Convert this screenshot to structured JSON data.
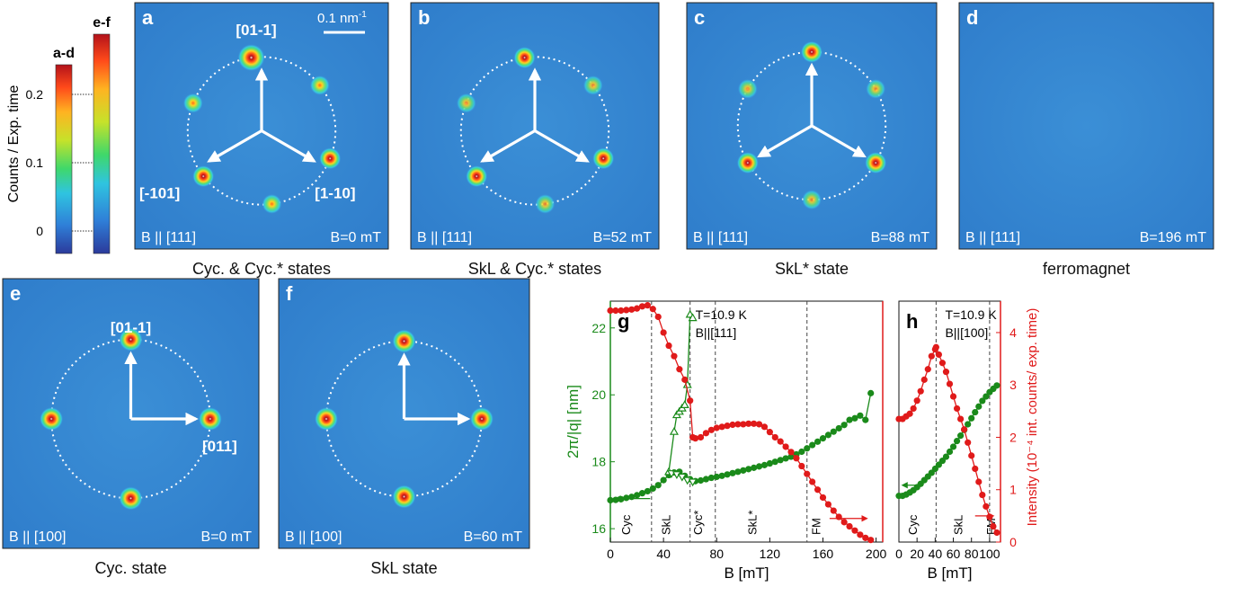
{
  "colorbars": {
    "ad_label": "a-d",
    "ef_label": "e-f",
    "axis_title": "Counts / Exp. time",
    "ticks": [
      "0",
      "0.1",
      "0.2"
    ]
  },
  "panels": [
    {
      "letter": "a",
      "field": "B || [111]",
      "bval": "B=0 mT",
      "caption": "Cyc. & Cyc.* states",
      "scale": "0.1 nm",
      "scale_sup": "-1",
      "dirs": [
        "[01-1]",
        "[-101]",
        "[1-10]"
      ],
      "intensity": 0.9
    },
    {
      "letter": "b",
      "field": "B || [111]",
      "bval": "B=52 mT",
      "caption": "SkL & Cyc.* states",
      "intensity": 0.65
    },
    {
      "letter": "c",
      "field": "B || [111]",
      "bval": "B=88 mT",
      "caption": "SkL* state",
      "intensity": 0.6
    },
    {
      "letter": "d",
      "field": "B || [111]",
      "bval": "B=196 mT",
      "caption": "ferromagnet",
      "intensity": 0.0
    },
    {
      "letter": "e",
      "field": "B || [100]",
      "bval": "B=0 mT",
      "caption": "Cyc. state",
      "dirs": [
        "[01-1]",
        "[011]"
      ],
      "intensity": 0.9
    },
    {
      "letter": "f",
      "field": "B || [100]",
      "bval": "B=60 mT",
      "caption": "SkL state",
      "intensity": 0.95
    }
  ],
  "chart_data": [
    {
      "type": "scatter",
      "panel": "g",
      "annotation": "T=10.9 K",
      "annotation2": "B||[111]",
      "xlabel": "B [mT]",
      "ylabel": "2π/|q| [nm]",
      "xlim": [
        0,
        205
      ],
      "ylim": [
        15.6,
        22.8
      ],
      "xticks": [
        0,
        40,
        80,
        120,
        160,
        200
      ],
      "yticks": [
        16,
        18,
        20,
        22
      ],
      "y2lim": [
        0,
        4.6
      ],
      "phase_lines": [
        31,
        60,
        79,
        148
      ],
      "phase_labels": [
        {
          "text": "Cyc",
          "x": 15
        },
        {
          "text": "SkL",
          "x": 45
        },
        {
          "text": "Cyc*",
          "x": 69
        },
        {
          "text": "SkL*",
          "x": 110
        },
        {
          "text": "FM",
          "x": 158
        }
      ],
      "series": [
        {
          "role": "wavelength",
          "color": "#1a8a1a",
          "marker": "circle",
          "x": [
            0,
            4,
            8,
            12,
            16,
            20,
            24,
            28,
            32,
            36,
            40,
            44,
            48,
            52,
            56,
            60,
            64,
            68,
            72,
            76,
            80,
            84,
            88,
            92,
            96,
            100,
            104,
            108,
            112,
            116,
            120,
            124,
            128,
            132,
            136,
            140,
            144,
            148,
            152,
            156,
            160,
            164,
            168,
            172,
            176,
            180,
            184,
            188,
            192,
            196
          ],
          "y": [
            16.85,
            16.86,
            16.88,
            16.92,
            16.95,
            17.0,
            17.06,
            17.12,
            17.2,
            17.3,
            17.45,
            17.6,
            17.68,
            17.7,
            17.58,
            17.48,
            17.42,
            17.44,
            17.48,
            17.52,
            17.55,
            17.58,
            17.62,
            17.66,
            17.7,
            17.74,
            17.78,
            17.82,
            17.86,
            17.9,
            17.95,
            18.0,
            18.05,
            18.1,
            18.15,
            18.22,
            18.3,
            18.4,
            18.5,
            18.6,
            18.7,
            18.8,
            18.9,
            19.0,
            19.1,
            19.25,
            19.3,
            19.38,
            19.25,
            20.05
          ]
        },
        {
          "role": "wavelength-up",
          "color": "#1a8a1a",
          "marker": "triangle-up",
          "x": [
            44,
            48,
            50,
            52,
            54,
            56,
            58,
            60,
            62
          ],
          "y": [
            17.7,
            18.9,
            19.4,
            19.5,
            19.6,
            19.7,
            20.3,
            22.4,
            22.3
          ]
        },
        {
          "role": "wavelength-down",
          "color": "#1a8a1a",
          "marker": "triangle-down",
          "x": [
            46,
            50,
            54,
            58,
            62
          ],
          "y": [
            17.65,
            17.62,
            17.55,
            17.45,
            17.4
          ]
        },
        {
          "role": "intensity",
          "color": "#e01a1a",
          "marker": "circle",
          "axis": "right",
          "x": [
            0,
            4,
            8,
            12,
            16,
            20,
            24,
            28,
            32,
            36,
            40,
            44,
            48,
            52,
            56,
            60,
            62,
            64,
            68,
            72,
            76,
            80,
            84,
            88,
            92,
            96,
            100,
            104,
            108,
            112,
            116,
            120,
            124,
            128,
            132,
            136,
            140,
            144,
            148,
            152,
            156,
            160,
            164,
            168,
            172,
            176,
            180,
            184,
            188,
            192,
            196
          ],
          "y": [
            4.42,
            4.42,
            4.42,
            4.43,
            4.44,
            4.46,
            4.5,
            4.52,
            4.45,
            4.3,
            4.0,
            3.75,
            3.55,
            3.3,
            3.1,
            2.7,
            2.0,
            1.98,
            2.0,
            2.08,
            2.14,
            2.18,
            2.2,
            2.22,
            2.24,
            2.25,
            2.25,
            2.26,
            2.26,
            2.25,
            2.2,
            2.1,
            2.0,
            1.92,
            1.82,
            1.72,
            1.6,
            1.45,
            1.3,
            1.15,
            1.0,
            0.85,
            0.72,
            0.6,
            0.48,
            0.38,
            0.3,
            0.22,
            0.14,
            0.08,
            0.04
          ]
        }
      ]
    },
    {
      "type": "scatter",
      "panel": "h",
      "annotation": "T=10.9 K",
      "annotation2": "B||[100]",
      "xlabel": "B [mT]",
      "ylabel": "Intensity (10⁻⁴ int. counts/ exp. time)",
      "xlim": [
        0,
        112
      ],
      "ylim": [
        15.6,
        22.8
      ],
      "xticks": [
        0,
        20,
        40,
        60,
        80,
        100
      ],
      "y2lim": [
        0,
        4.6
      ],
      "y2ticks": [
        0,
        1,
        2,
        3,
        4
      ],
      "phase_lines": [
        41,
        100
      ],
      "phase_labels": [
        {
          "text": "Cyc",
          "x": 20
        },
        {
          "text": "SkL",
          "x": 70
        },
        {
          "text": "FM",
          "x": 106
        }
      ],
      "series": [
        {
          "role": "wavelength",
          "color": "#1a8a1a",
          "marker": "circle",
          "x": [
            0,
            4,
            8,
            12,
            16,
            20,
            24,
            28,
            32,
            36,
            40,
            44,
            48,
            52,
            56,
            60,
            64,
            68,
            72,
            76,
            80,
            84,
            88,
            92,
            96,
            100,
            104,
            108
          ],
          "y": [
            16.98,
            16.98,
            17.02,
            17.08,
            17.15,
            17.24,
            17.34,
            17.45,
            17.56,
            17.67,
            17.79,
            17.91,
            18.03,
            18.15,
            18.3,
            18.45,
            18.62,
            18.78,
            18.95,
            19.12,
            19.3,
            19.48,
            19.65,
            19.82,
            19.95,
            20.08,
            20.18,
            20.28
          ]
        },
        {
          "role": "intensity",
          "color": "#e01a1a",
          "marker": "circle",
          "axis": "right",
          "x": [
            0,
            4,
            8,
            12,
            16,
            20,
            24,
            28,
            32,
            36,
            40,
            41,
            44,
            48,
            52,
            56,
            60,
            64,
            68,
            72,
            76,
            80,
            84,
            88,
            92,
            96,
            100,
            104,
            108
          ],
          "y": [
            2.35,
            2.35,
            2.4,
            2.45,
            2.55,
            2.7,
            2.88,
            3.1,
            3.3,
            3.55,
            3.68,
            3.72,
            3.58,
            3.42,
            3.25,
            3.02,
            2.78,
            2.55,
            2.35,
            2.15,
            1.9,
            1.65,
            1.4,
            1.15,
            0.9,
            0.68,
            0.48,
            0.3,
            0.18
          ]
        }
      ]
    }
  ]
}
